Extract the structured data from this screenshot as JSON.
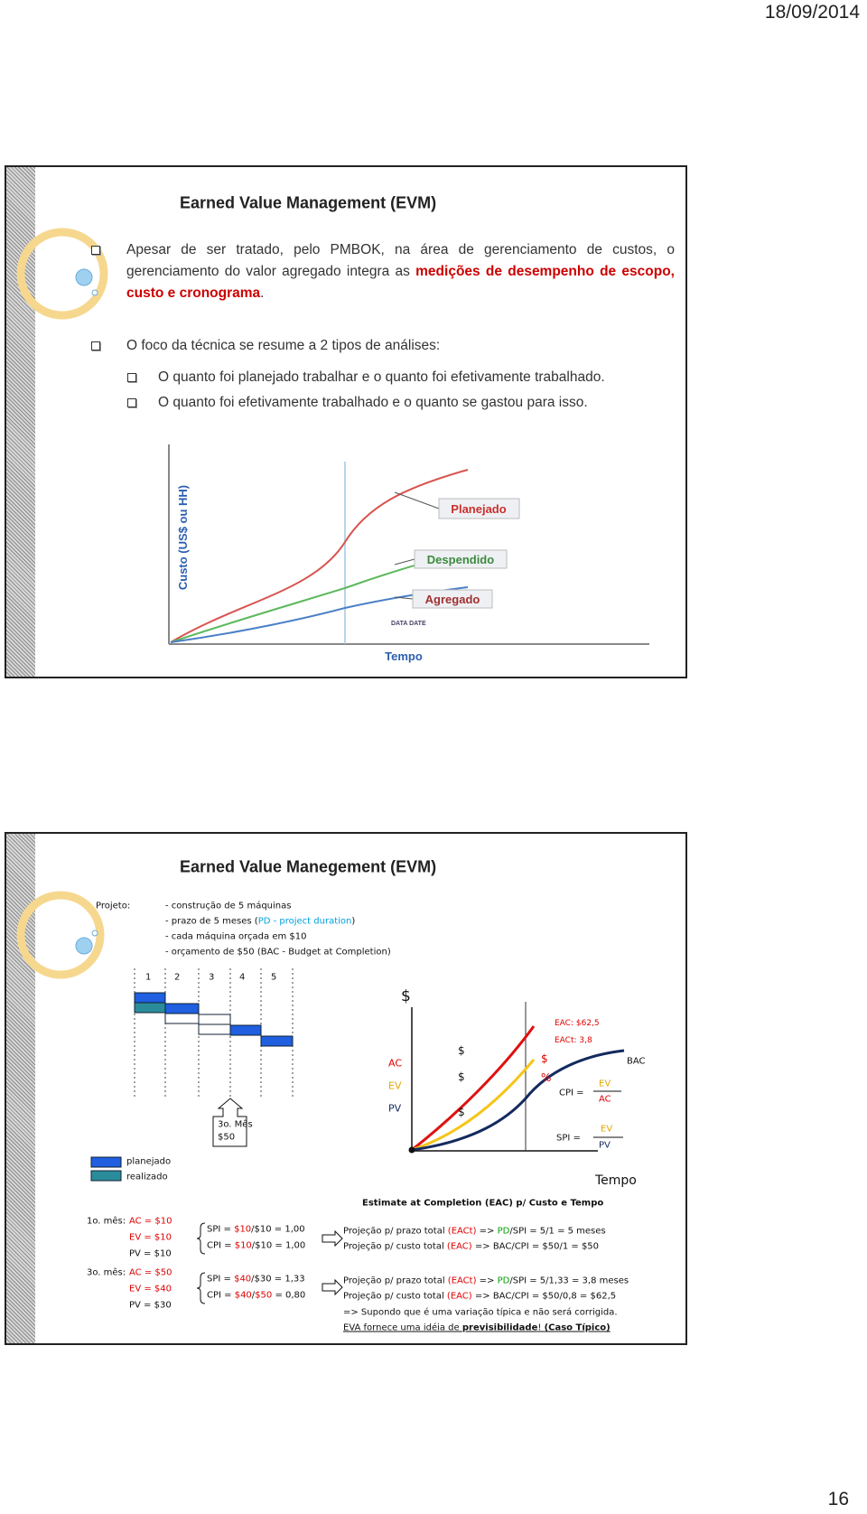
{
  "header": {
    "date": "18/09/2014"
  },
  "footer": {
    "page_number": "16"
  },
  "slides": [
    {
      "title": "Earned Value Management (EVM)",
      "bullets": [
        {
          "parts": [
            "Apesar de ser tratado, pelo PMBOK, na área de gerenciamento de custos, o gerenciamento do valor agregado integra as ",
            "medições de desempenho de escopo, custo e cronograma",
            "."
          ]
        },
        {
          "text": "O foco da técnica se resume a 2 tipos de análises:",
          "sub": [
            "O quanto foi planejado trabalhar e o quanto foi efetivamente trabalhado.",
            "O quanto foi efetivamente trabalhado e o quanto se gastou para isso."
          ]
        }
      ],
      "figure": {
        "y_axis": "Custo (US$ ou HH)",
        "x_axis": "Tempo",
        "labels": [
          "Planejado",
          "Despendido",
          "Agregado"
        ],
        "data_date": "DATA DATE"
      }
    },
    {
      "title": "Earned Value Manegement (EVM)",
      "project": {
        "label": "Projeto:",
        "lines": [
          [
            "- construção de 5 máquinas"
          ],
          [
            "- prazo de 5 meses (",
            "PD - project duration",
            ")"
          ],
          [
            "- cada máquina orçada em $10"
          ],
          [
            "- orçamento de $50 (BAC - Budget at Completion)"
          ]
        ]
      },
      "gantt": {
        "months": [
          "1",
          "2",
          "3",
          "4",
          "5"
        ],
        "callout": [
          "3o. Mês",
          "$50"
        ],
        "legend": [
          "planejado",
          "realizado"
        ]
      },
      "curve_chart": {
        "y_symbol": "$",
        "x_label": "Tempo",
        "curve_labels": [
          "AC",
          "EV",
          "PV"
        ],
        "mid_symbols": [
          "$",
          "$",
          "$"
        ],
        "date_symbols": [
          "$",
          "%"
        ],
        "eac": "EAC: $62,5",
        "eact": "EACt: 3,8",
        "bac": "BAC",
        "cpi": {
          "label": "CPI =",
          "numerator": "EV",
          "denominator": "AC"
        },
        "spi": {
          "label": "SPI =",
          "numerator": "EV",
          "denominator": "PV"
        },
        "caption": "Estimate at Completion (EAC) p/ Custo e Tempo"
      },
      "months": [
        {
          "label": "1o. mês:",
          "values": [
            "AC = $10",
            "EV = $10",
            "PV = $10"
          ],
          "indices": [
            [
              "SPI = ",
              "$10",
              "/$10 = 1,00"
            ],
            [
              "CPI = ",
              "$10",
              "/$10 = 1,00"
            ]
          ],
          "projections": [
            [
              "Projeção p/ prazo total ",
              "(EACt)",
              " => ",
              "PD",
              "/SPI = 5/1 = 5 meses"
            ],
            [
              "Projeção p/ custo total ",
              "(EAC)",
              " => BAC/CPI = $50/1 = $50"
            ]
          ]
        },
        {
          "label": "3o. mês:",
          "values": [
            "AC = $50",
            "EV = $40",
            "PV = $30"
          ],
          "indices": [
            [
              "SPI = ",
              "$40",
              "/$30 = 1,33"
            ],
            [
              "CPI = ",
              "$40",
              "/",
              "$50",
              " = 0,80"
            ]
          ],
          "projections": [
            [
              "Projeção p/ prazo total ",
              "(EACt)",
              " => ",
              "PD",
              "/SPI = 5/1,33 = 3,8 meses"
            ],
            [
              "Projeção p/ custo total ",
              "(EAC)",
              " => BAC/CPI = $50/0,8 = $62,5"
            ]
          ]
        }
      ],
      "notes": [
        "=> Supondo que é uma variação típica e não será corrigida.",
        [
          "EVA fornece uma idéia de ",
          "previsibilidade",
          "! ",
          "(Caso Típico)"
        ]
      ]
    }
  ]
}
